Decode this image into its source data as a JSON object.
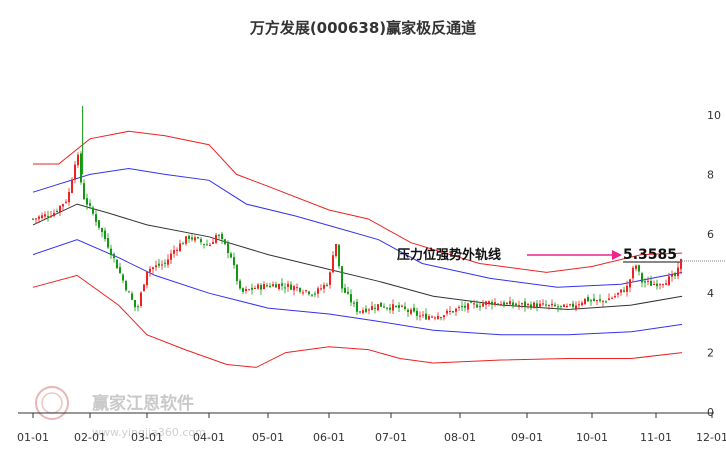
{
  "chart_data": {
    "type": "candlestick",
    "title": "万方发展(000638)赢家极反通道",
    "x_ticks": [
      "01-01",
      "02-01",
      "03-01",
      "04-01",
      "05-01",
      "06-01",
      "07-01",
      "08-01",
      "09-01",
      "10-01",
      "11-01",
      "12-01"
    ],
    "y_ticks": [
      "0",
      "2",
      "4",
      "6",
      "8",
      "10"
    ],
    "ylim": [
      0,
      10.5
    ],
    "grid": false,
    "annotation": {
      "label": "压力位强势外轨线",
      "value": "5.3585"
    },
    "watermark": {
      "text": "赢家江恩软件",
      "url": "www.yingjia360.com"
    },
    "colors": {
      "up": "#ee2222",
      "down": "#119911",
      "outer_band": "#ee2222",
      "inner_band": "#3333ee",
      "middle_line": "#333333",
      "arrow": "#ee2288"
    },
    "close_keypoints": [
      {
        "date": "01-01",
        "close": 6.5
      },
      {
        "date": "01-12",
        "close": 6.7
      },
      {
        "date": "01-20",
        "close": 7.2
      },
      {
        "date": "01-25",
        "close": 8.8
      },
      {
        "date": "01-28",
        "close": 7.3
      },
      {
        "date": "02-03",
        "close": 6.6
      },
      {
        "date": "02-10",
        "close": 5.6
      },
      {
        "date": "02-18",
        "close": 4.3
      },
      {
        "date": "02-24",
        "close": 3.4
      },
      {
        "date": "03-01",
        "close": 4.8
      },
      {
        "date": "03-10",
        "close": 5.0
      },
      {
        "date": "03-15",
        "close": 5.5
      },
      {
        "date": "03-22",
        "close": 5.9
      },
      {
        "date": "04-01",
        "close": 5.6
      },
      {
        "date": "04-05",
        "close": 6.0
      },
      {
        "date": "04-12",
        "close": 5.3
      },
      {
        "date": "04-17",
        "close": 4.0
      },
      {
        "date": "04-25",
        "close": 4.2
      },
      {
        "date": "05-05",
        "close": 4.3
      },
      {
        "date": "05-15",
        "close": 4.2
      },
      {
        "date": "05-25",
        "close": 4.0
      },
      {
        "date": "06-01",
        "close": 4.4
      },
      {
        "date": "06-04",
        "close": 5.9
      },
      {
        "date": "06-07",
        "close": 4.2
      },
      {
        "date": "06-15",
        "close": 3.4
      },
      {
        "date": "06-25",
        "close": 3.6
      },
      {
        "date": "07-05",
        "close": 3.5
      },
      {
        "date": "07-15",
        "close": 3.2
      },
      {
        "date": "07-25",
        "close": 3.3
      },
      {
        "date": "08-01",
        "close": 3.5
      },
      {
        "date": "08-15",
        "close": 3.7
      },
      {
        "date": "08-28",
        "close": 3.6
      },
      {
        "date": "09-05",
        "close": 3.6
      },
      {
        "date": "09-20",
        "close": 3.5
      },
      {
        "date": "09-28",
        "close": 3.8
      },
      {
        "date": "10-05",
        "close": 3.7
      },
      {
        "date": "10-12",
        "close": 3.9
      },
      {
        "date": "10-18",
        "close": 4.2
      },
      {
        "date": "10-22",
        "close": 5.0
      },
      {
        "date": "10-25",
        "close": 4.4
      },
      {
        "date": "10-30",
        "close": 4.3
      },
      {
        "date": "11-05",
        "close": 4.4
      },
      {
        "date": "11-12",
        "close": 4.6
      },
      {
        "date": "11-15",
        "close": 5.2
      }
    ],
    "band_keypoints": {
      "outer_upper": [
        {
          "date": "01-01",
          "value": 8.35
        },
        {
          "date": "01-15",
          "value": 8.35
        },
        {
          "date": "02-01",
          "value": 9.2
        },
        {
          "date": "02-20",
          "value": 9.45
        },
        {
          "date": "03-10",
          "value": 9.3
        },
        {
          "date": "04-01",
          "value": 9.0
        },
        {
          "date": "04-15",
          "value": 8.0
        },
        {
          "date": "05-01",
          "value": 7.6
        },
        {
          "date": "06-01",
          "value": 6.8
        },
        {
          "date": "06-20",
          "value": 6.5
        },
        {
          "date": "07-10",
          "value": 5.7
        },
        {
          "date": "08-10",
          "value": 5.0
        },
        {
          "date": "09-10",
          "value": 4.7
        },
        {
          "date": "10-01",
          "value": 4.9
        },
        {
          "date": "10-25",
          "value": 5.3
        },
        {
          "date": "11-15",
          "value": 5.35
        }
      ],
      "inner_upper": [
        {
          "date": "01-01",
          "value": 7.4
        },
        {
          "date": "02-01",
          "value": 8.0
        },
        {
          "date": "02-20",
          "value": 8.2
        },
        {
          "date": "03-10",
          "value": 8.0
        },
        {
          "date": "04-01",
          "value": 7.8
        },
        {
          "date": "04-20",
          "value": 7.0
        },
        {
          "date": "05-15",
          "value": 6.6
        },
        {
          "date": "06-05",
          "value": 6.2
        },
        {
          "date": "06-25",
          "value": 5.8
        },
        {
          "date": "07-15",
          "value": 5.0
        },
        {
          "date": "08-15",
          "value": 4.5
        },
        {
          "date": "09-15",
          "value": 4.2
        },
        {
          "date": "10-15",
          "value": 4.3
        },
        {
          "date": "11-15",
          "value": 4.7
        }
      ],
      "middle": [
        {
          "date": "01-01",
          "value": 6.3
        },
        {
          "date": "01-25",
          "value": 7.0
        },
        {
          "date": "02-10",
          "value": 6.7
        },
        {
          "date": "03-01",
          "value": 6.3
        },
        {
          "date": "04-01",
          "value": 5.9
        },
        {
          "date": "05-01",
          "value": 5.3
        },
        {
          "date": "06-01",
          "value": 4.8
        },
        {
          "date": "06-25",
          "value": 4.4
        },
        {
          "date": "07-20",
          "value": 3.9
        },
        {
          "date": "08-20",
          "value": 3.6
        },
        {
          "date": "09-20",
          "value": 3.45
        },
        {
          "date": "10-20",
          "value": 3.6
        },
        {
          "date": "11-15",
          "value": 3.9
        }
      ],
      "inner_lower": [
        {
          "date": "01-01",
          "value": 5.3
        },
        {
          "date": "01-25",
          "value": 5.8
        },
        {
          "date": "02-15",
          "value": 5.2
        },
        {
          "date": "03-05",
          "value": 4.6
        },
        {
          "date": "04-01",
          "value": 4.0
        },
        {
          "date": "05-01",
          "value": 3.5
        },
        {
          "date": "06-01",
          "value": 3.3
        },
        {
          "date": "06-25",
          "value": 3.05
        },
        {
          "date": "07-20",
          "value": 2.75
        },
        {
          "date": "08-20",
          "value": 2.6
        },
        {
          "date": "09-20",
          "value": 2.6
        },
        {
          "date": "10-20",
          "value": 2.7
        },
        {
          "date": "11-15",
          "value": 2.95
        }
      ],
      "outer_lower": [
        {
          "date": "01-01",
          "value": 4.2
        },
        {
          "date": "01-25",
          "value": 4.6
        },
        {
          "date": "02-15",
          "value": 3.6
        },
        {
          "date": "03-01",
          "value": 2.6
        },
        {
          "date": "03-20",
          "value": 2.1
        },
        {
          "date": "04-10",
          "value": 1.6
        },
        {
          "date": "04-25",
          "value": 1.5
        },
        {
          "date": "05-10",
          "value": 2.0
        },
        {
          "date": "06-01",
          "value": 2.2
        },
        {
          "date": "06-20",
          "value": 2.1
        },
        {
          "date": "07-05",
          "value": 1.8
        },
        {
          "date": "07-20",
          "value": 1.65
        },
        {
          "date": "08-20",
          "value": 1.75
        },
        {
          "date": "09-20",
          "value": 1.8
        },
        {
          "date": "10-20",
          "value": 1.8
        },
        {
          "date": "11-15",
          "value": 2.0
        }
      ]
    }
  }
}
